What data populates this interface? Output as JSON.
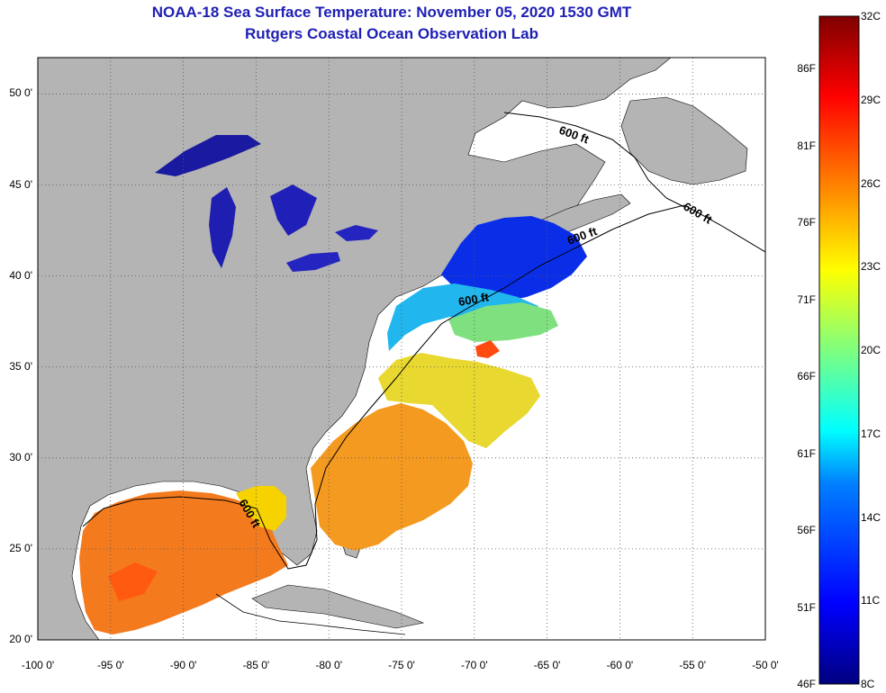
{
  "header": {
    "title_line1": "NOAA-18 Sea Surface Temperature:  November 05, 2020 1530 GMT",
    "title_line2": "Rutgers Coastal Ocean Observation Lab"
  },
  "map": {
    "lon_range": [
      -100,
      -50
    ],
    "lat_range": [
      20,
      52
    ],
    "lon_ticks": [
      {
        "value": -100,
        "label": "-100 0'"
      },
      {
        "value": -95,
        "label": "-95 0'"
      },
      {
        "value": -90,
        "label": "-90 0'"
      },
      {
        "value": -85,
        "label": "-85 0'"
      },
      {
        "value": -80,
        "label": "-80 0'"
      },
      {
        "value": -75,
        "label": "-75 0'"
      },
      {
        "value": -70,
        "label": "-70 0'"
      },
      {
        "value": -65,
        "label": "-65 0'"
      },
      {
        "value": -60,
        "label": "-60 0'"
      },
      {
        "value": -55,
        "label": "-55 0'"
      },
      {
        "value": -50,
        "label": "-50 0'"
      }
    ],
    "lat_ticks": [
      {
        "value": 50,
        "label": "50 0'"
      },
      {
        "value": 45,
        "label": "45 0'"
      },
      {
        "value": 40,
        "label": "40 0'"
      },
      {
        "value": 35,
        "label": "35 0'"
      },
      {
        "value": 30,
        "label": "30 0'"
      },
      {
        "value": 25,
        "label": "25 0'"
      },
      {
        "value": 20,
        "label": "20 0'"
      }
    ],
    "contour_labels": [
      "600 ft",
      "600 ft",
      "600 ft",
      "600 ft",
      "600 ft"
    ],
    "colors": {
      "land": "#b4b4b4",
      "ocean": "#ffffff",
      "grid": "#555555"
    }
  },
  "colorbar": {
    "celsius_range": [
      8,
      32
    ],
    "celsius_labels": [
      "32C",
      "29C",
      "26C",
      "23C",
      "20C",
      "17C",
      "14C",
      "11C",
      "8C"
    ],
    "fahrenheit_labels": [
      "86F",
      "81F",
      "76F",
      "71F",
      "66F",
      "61F",
      "56F",
      "51F",
      "46F"
    ]
  }
}
